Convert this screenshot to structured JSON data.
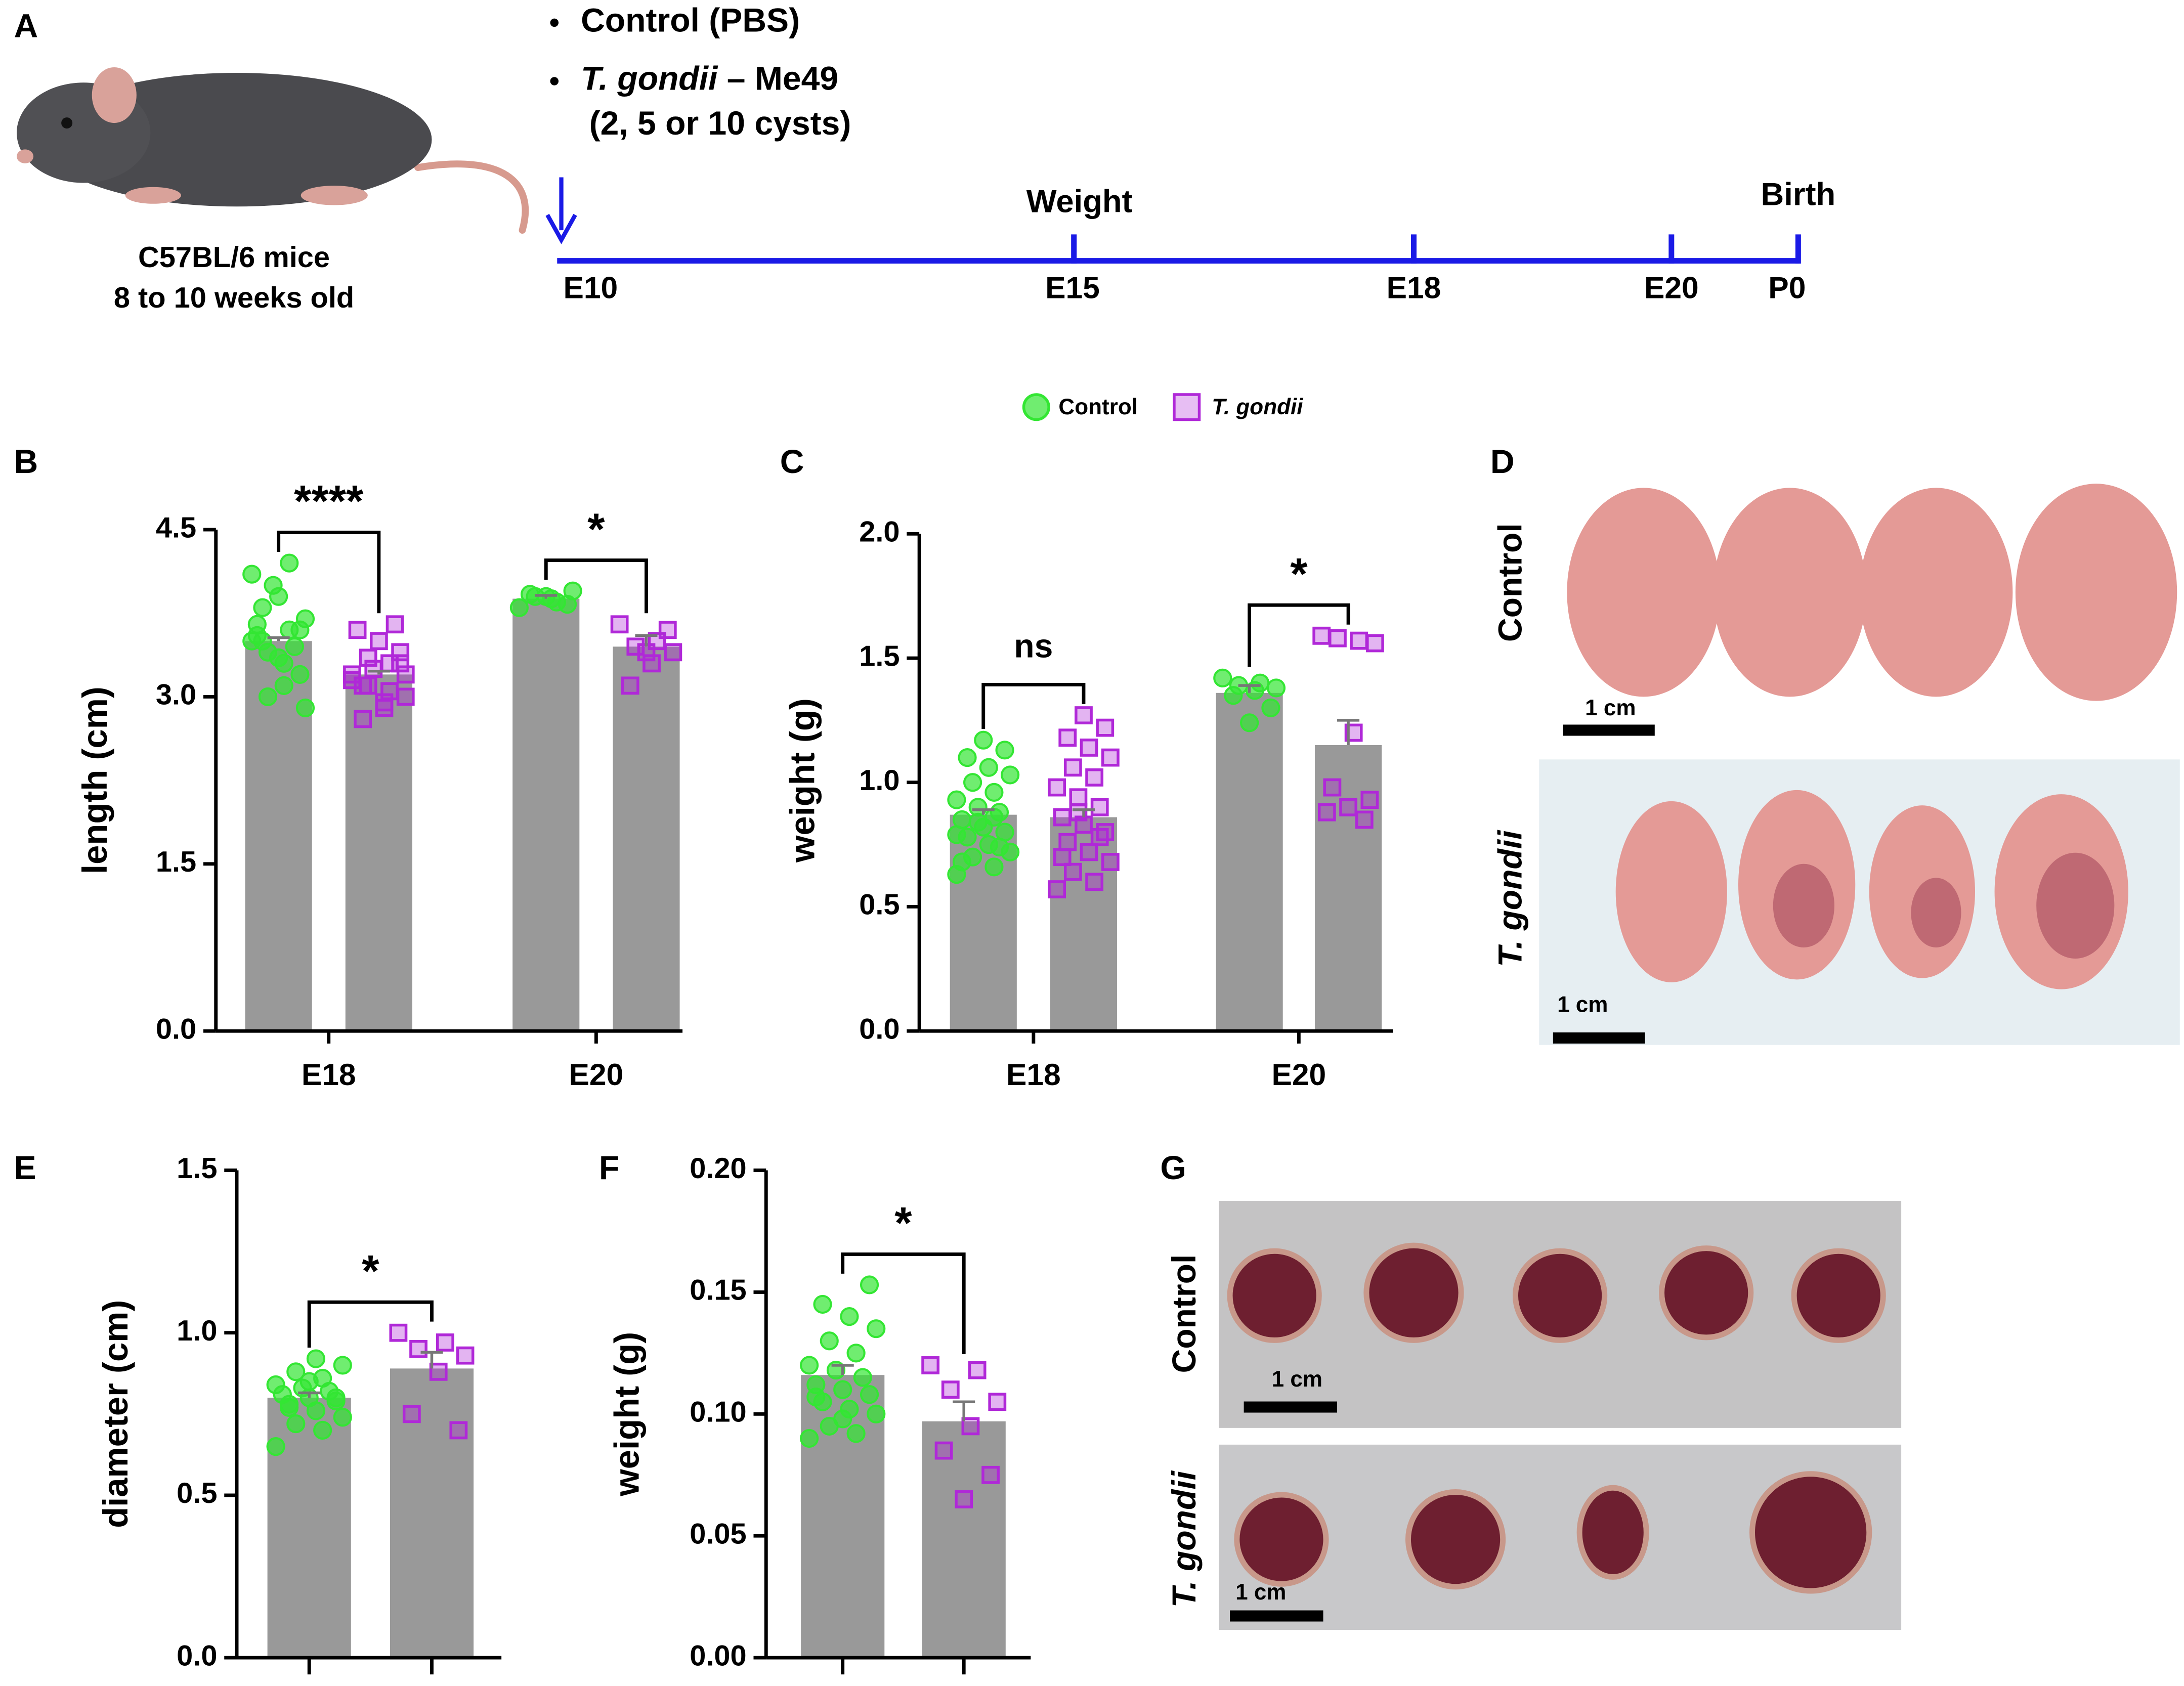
{
  "panels": [
    "A",
    "B",
    "C",
    "D",
    "E",
    "F",
    "G"
  ],
  "design": {
    "mice": [
      "C57BL/6 mice",
      "8 to 10 weeks old"
    ],
    "treatments": [
      {
        "name": "Control (PBS)"
      },
      {
        "name": "T. gondii",
        "strain": "– Me49",
        "dose": "(2, 5 or 10 cysts)"
      }
    ],
    "timeline": {
      "days": [
        "E10",
        "E15",
        "E18",
        "E20",
        "P0"
      ],
      "events": [
        "Weight",
        "Birth"
      ],
      "color": "#1a1ae6"
    }
  },
  "chart_data": [
    {
      "type": "bar",
      "ylabel": "length (cm)",
      "categories": [
        "E18",
        "E20"
      ],
      "bar_color": "#999999",
      "ylim": [
        0,
        4.5
      ],
      "yticks": [
        {
          "value": 0,
          "label": "0.0"
        },
        1.5,
        {
          "value": 3,
          "label": "3.0"
        },
        4.5
      ],
      "significance": [
        "****",
        "*"
      ],
      "series": [
        {
          "name": "Control",
          "color": "#33e633",
          "marker": "circle",
          "values": [
            3.5,
            3.88
          ],
          "errors": [
            0.03,
            0.03
          ],
          "points": [
            [
              3.5,
              3.6,
              3.4,
              3.7,
              3.3,
              3.8,
              3.2,
              3.9,
              3.55,
              3.45,
              4.0,
              4.1,
              4.2,
              3.0,
              2.9,
              3.1,
              3.5,
              3.6,
              3.35,
              3.65
            ],
            [
              3.8,
              3.85,
              3.9,
              3.95,
              3.88,
              3.92,
              3.83,
              3.9
            ]
          ]
        },
        {
          "name": "T. gondii",
          "color": "#b028d8",
          "marker": "square",
          "values": [
            3.2,
            3.45
          ],
          "errors": [
            0.03,
            0.1
          ],
          "points": [
            [
              3.2,
              3.3,
              3.1,
              3.0,
              2.9,
              2.8,
              3.4,
              3.5,
              3.6,
              3.65,
              3.25,
              3.15,
              3.05,
              3.35,
              3.2,
              2.95,
              3.1,
              3.3
            ],
            [
              3.65,
              3.5,
              3.45,
              3.4,
              3.3,
              3.1,
              3.6,
              3.4
            ]
          ]
        }
      ]
    },
    {
      "type": "bar",
      "ylabel": "weight (g)",
      "categories": [
        "E18",
        "E20"
      ],
      "bar_color": "#999999",
      "ylim": [
        0,
        2
      ],
      "yticks": [
        {
          "value": 0,
          "label": "0.0"
        },
        0.5,
        {
          "value": 1,
          "label": "1.0"
        },
        1.5,
        {
          "value": 2,
          "label": "2.0"
        }
      ],
      "significance": [
        "ns",
        "*"
      ],
      "series": [
        {
          "color": "#33e633",
          "marker": "circle",
          "values": [
            0.87,
            1.36
          ],
          "errors": [
            0.02,
            0.03
          ],
          "points": [
            [
              0.63,
              0.66,
              0.7,
              0.72,
              0.75,
              0.78,
              0.8,
              0.82,
              0.85,
              0.88,
              0.9,
              0.93,
              0.96,
              1.0,
              1.03,
              1.06,
              1.1,
              1.13,
              1.17,
              0.68,
              0.74,
              0.84,
              0.79,
              0.86
            ],
            [
              1.42,
              1.4,
              1.39,
              1.38,
              1.37,
              1.35,
              1.3,
              1.24
            ]
          ]
        },
        {
          "color": "#b028d8",
          "marker": "square",
          "values": [
            0.86,
            1.15
          ],
          "errors": [
            0.03,
            0.1
          ],
          "points": [
            [
              0.57,
              0.6,
              0.64,
              0.68,
              0.72,
              0.76,
              0.8,
              0.83,
              0.86,
              0.9,
              0.94,
              0.98,
              1.02,
              1.06,
              1.1,
              1.14,
              1.18,
              1.22,
              1.27,
              0.7,
              0.78,
              0.88
            ],
            [
              1.59,
              1.57,
              1.58,
              1.56,
              1.2,
              0.98,
              0.93,
              0.9,
              0.88,
              0.85
            ]
          ]
        }
      ]
    },
    {
      "type": "bar",
      "ylabel": "diameter (cm)",
      "categories": [
        null
      ],
      "bar_color": "#999999",
      "ylim": [
        0,
        1.5
      ],
      "yticks": [
        {
          "value": 0,
          "label": "0.0"
        },
        0.5,
        {
          "value": 1,
          "label": "1.0"
        },
        1.5
      ],
      "significance": [
        "*"
      ],
      "series": [
        {
          "color": "#33e633",
          "marker": "circle",
          "values": [
            0.8
          ],
          "errors": [
            0.015
          ],
          "points": [
            [
              0.65,
              0.7,
              0.72,
              0.74,
              0.76,
              0.78,
              0.79,
              0.8,
              0.81,
              0.82,
              0.83,
              0.84,
              0.86,
              0.88,
              0.9,
              0.92,
              0.77,
              0.8,
              0.85
            ]
          ]
        },
        {
          "color": "#b028d8",
          "marker": "square",
          "values": [
            0.89
          ],
          "errors": [
            0.05
          ],
          "points": [
            [
              1.0,
              0.97,
              0.95,
              0.93,
              0.88,
              0.75,
              0.7
            ]
          ]
        }
      ]
    },
    {
      "type": "bar",
      "ylabel": "weight (g)",
      "categories": [
        null
      ],
      "bar_color": "#999999",
      "ylim": [
        0,
        0.2
      ],
      "yticks": [
        {
          "value": 0,
          "label": "0.00"
        },
        {
          "value": 0.05,
          "label": "0.05"
        },
        {
          "value": 0.1,
          "label": "0.10"
        },
        {
          "value": 0.15,
          "label": "0.15"
        },
        {
          "value": 0.2,
          "label": "0.20"
        }
      ],
      "significance": [
        "*"
      ],
      "series": [
        {
          "color": "#33e633",
          "marker": "circle",
          "values": [
            0.116
          ],
          "errors": [
            0.004
          ],
          "points": [
            [
              0.09,
              0.092,
              0.095,
              0.1,
              0.102,
              0.105,
              0.108,
              0.11,
              0.112,
              0.115,
              0.118,
              0.12,
              0.125,
              0.13,
              0.135,
              0.14,
              0.145,
              0.153,
              0.098,
              0.107
            ]
          ]
        },
        {
          "color": "#b028d8",
          "marker": "square",
          "values": [
            0.097
          ],
          "errors": [
            0.008
          ],
          "points": [
            [
              0.12,
              0.118,
              0.11,
              0.105,
              0.095,
              0.085,
              0.075,
              0.065
            ]
          ]
        }
      ]
    }
  ],
  "photos": {
    "D": {
      "rows": [
        "Control",
        "T. gondii"
      ],
      "scale_bars": [
        "1 cm",
        "1 cm"
      ]
    },
    "G": {
      "rows": [
        "Control",
        "T. gondii"
      ],
      "scale_bars": [
        "1 cm",
        "1 cm"
      ]
    }
  }
}
